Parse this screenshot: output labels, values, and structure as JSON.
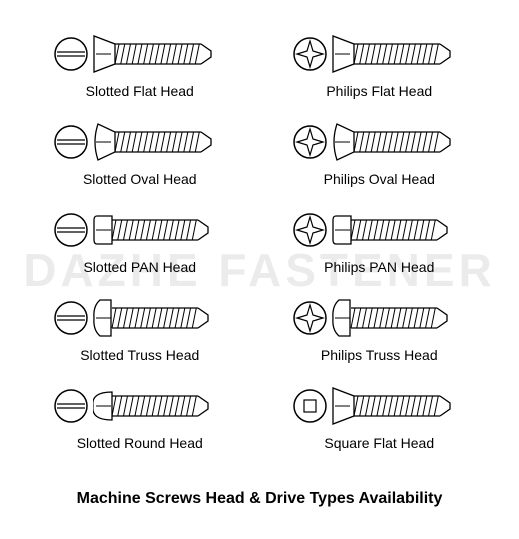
{
  "title": "Machine Screws Head & Drive Types Availability",
  "watermark": "DAZHE FASTENER",
  "stroke_color": "#000000",
  "background_color": "#ffffff",
  "label_fontsize": 14,
  "title_fontsize": 16,
  "screws": [
    {
      "label": "Slotted Flat Head",
      "drive": "slot",
      "head": "flat"
    },
    {
      "label": "Philips Flat Head",
      "drive": "philips",
      "head": "flat"
    },
    {
      "label": "Slotted Oval Head",
      "drive": "slot",
      "head": "oval"
    },
    {
      "label": "Philips Oval Head",
      "drive": "philips",
      "head": "oval"
    },
    {
      "label": "Slotted PAN Head",
      "drive": "slot",
      "head": "pan"
    },
    {
      "label": "Philips PAN Head",
      "drive": "philips",
      "head": "pan"
    },
    {
      "label": "Slotted Truss Head",
      "drive": "slot",
      "head": "truss"
    },
    {
      "label": "Philips Truss Head",
      "drive": "philips",
      "head": "truss"
    },
    {
      "label": "Slotted Round Head",
      "drive": "slot",
      "head": "round"
    },
    {
      "label": "Square Flat Head",
      "drive": "square",
      "head": "flat"
    }
  ],
  "drive_icon_radius": 16,
  "screw_body_length": 100,
  "screw_body_height": 20,
  "thread_count": 15
}
